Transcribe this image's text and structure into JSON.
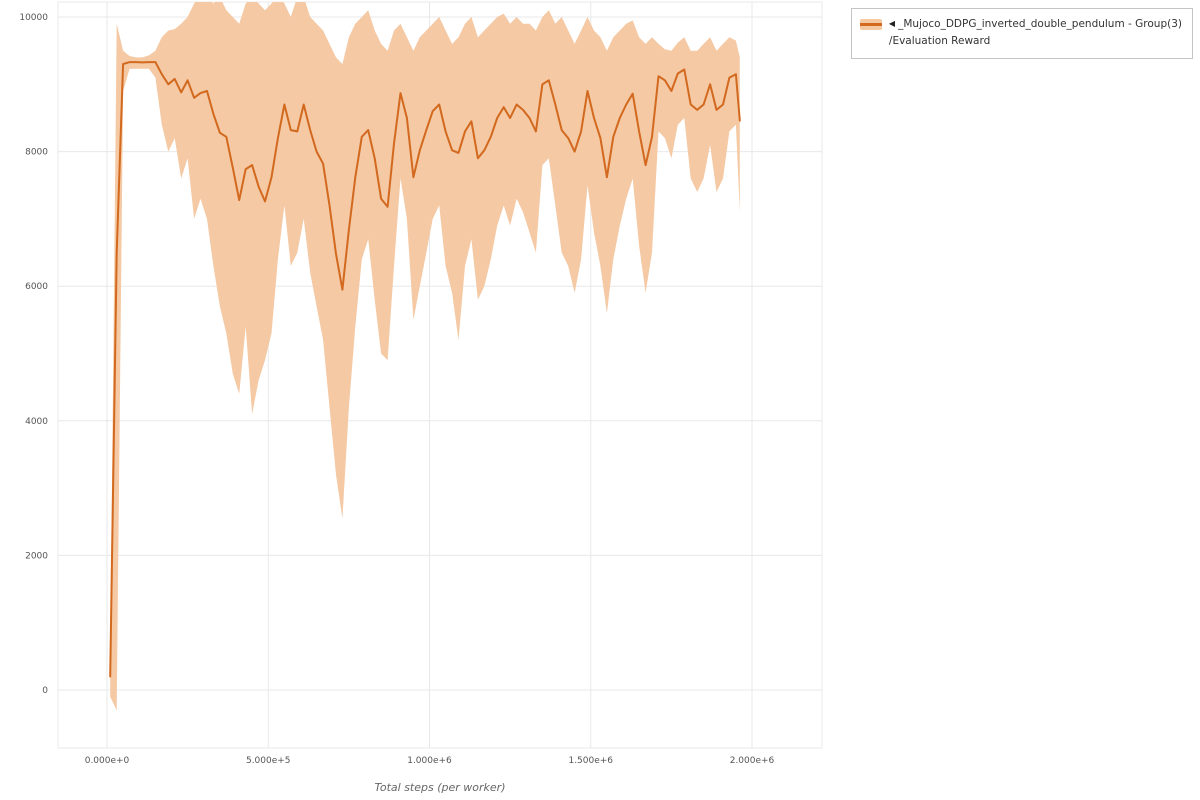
{
  "legend": {
    "toggle_icon": "◀",
    "series_name": "_Mujoco_DDPG_inverted_double_pendulum - Group(3)",
    "metric_name": "/Evaluation Reward"
  },
  "colors": {
    "line": "#d2691e",
    "band": "#f4c9a4",
    "grid": "#e8e8e8",
    "tick_text": "#555555",
    "axis_title_text": "#666666"
  },
  "chart_data": {
    "type": "line",
    "title": "",
    "xlabel": "Total steps (per worker)",
    "ylabel": "",
    "x_ticks": [
      0,
      500000,
      1000000,
      1500000,
      2000000
    ],
    "x_tick_labels": [
      "0.000e+0",
      "5.000e+5",
      "1.000e+6",
      "1.500e+6",
      "2.000e+6"
    ],
    "y_ticks": [
      0,
      2000,
      4000,
      6000,
      8000,
      10000
    ],
    "y_tick_labels": [
      "0",
      "2000",
      "4000",
      "6000",
      "8000",
      "10000"
    ],
    "xlim": [
      -152000,
      2217000
    ],
    "ylim": [
      -862,
      10223
    ],
    "grid": true,
    "legend_position": "top-right-outside",
    "series": [
      {
        "name": "_Mujoco_DDPG_inverted_double_pendulum - Group(3) /Evaluation Reward",
        "x": [
          10000,
          30000,
          50000,
          70000,
          90000,
          110000,
          130000,
          150000,
          170000,
          190000,
          210000,
          230000,
          250000,
          270000,
          290000,
          310000,
          330000,
          350000,
          370000,
          390000,
          410000,
          430000,
          450000,
          470000,
          490000,
          510000,
          530000,
          550000,
          570000,
          590000,
          610000,
          630000,
          650000,
          670000,
          690000,
          710000,
          730000,
          750000,
          770000,
          790000,
          810000,
          830000,
          850000,
          870000,
          890000,
          910000,
          930000,
          950000,
          970000,
          990000,
          1010000,
          1030000,
          1050000,
          1070000,
          1090000,
          1110000,
          1130000,
          1150000,
          1170000,
          1190000,
          1210000,
          1230000,
          1250000,
          1270000,
          1290000,
          1310000,
          1330000,
          1350000,
          1370000,
          1390000,
          1410000,
          1430000,
          1450000,
          1470000,
          1490000,
          1510000,
          1530000,
          1550000,
          1570000,
          1590000,
          1610000,
          1630000,
          1650000,
          1670000,
          1690000,
          1710000,
          1730000,
          1750000,
          1770000,
          1790000,
          1810000,
          1830000,
          1850000,
          1870000,
          1890000,
          1910000,
          1930000,
          1950000,
          1962000
        ],
        "mean": [
          200,
          6500,
          9300,
          9330,
          9330,
          9325,
          9330,
          9330,
          9150,
          9000,
          9080,
          8880,
          9060,
          8800,
          8870,
          8900,
          8560,
          8280,
          8220,
          7760,
          7280,
          7740,
          7800,
          7480,
          7260,
          7620,
          8200,
          8700,
          8320,
          8300,
          8700,
          8320,
          8000,
          7820,
          7200,
          6480,
          5950,
          6840,
          7620,
          8220,
          8320,
          7900,
          7300,
          7180,
          8120,
          8870,
          8500,
          7620,
          8020,
          8320,
          8600,
          8700,
          8300,
          8020,
          7980,
          8300,
          8450,
          7900,
          8020,
          8220,
          8500,
          8660,
          8500,
          8700,
          8620,
          8500,
          8300,
          9000,
          9060,
          8700,
          8320,
          8200,
          8000,
          8300,
          8900,
          8500,
          8200,
          7620,
          8220,
          8500,
          8700,
          8860,
          8300,
          7800,
          8220,
          9120,
          9060,
          8900,
          9160,
          9220,
          8700,
          8620,
          8700,
          9000,
          8620,
          8700,
          9100,
          9150,
          8460
        ],
        "band_high": [
          500,
          9900,
          9500,
          9420,
          9400,
          9400,
          9430,
          9500,
          9700,
          9800,
          9820,
          9900,
          10000,
          10200,
          10300,
          10300,
          10200,
          10300,
          10100,
          10000,
          9900,
          10200,
          10300,
          10200,
          10100,
          10200,
          10300,
          10200,
          10000,
          10300,
          10300,
          10000,
          9900,
          9800,
          9600,
          9400,
          9300,
          9700,
          9900,
          10000,
          10100,
          9800,
          9600,
          9500,
          9800,
          9900,
          9700,
          9500,
          9700,
          9800,
          9900,
          10000,
          9800,
          9600,
          9700,
          9900,
          10000,
          9700,
          9800,
          9900,
          10000,
          10050,
          9900,
          10000,
          9900,
          9900,
          9800,
          10000,
          10100,
          9900,
          10000,
          9800,
          9600,
          9800,
          10000,
          9800,
          9700,
          9500,
          9700,
          9800,
          9900,
          9950,
          9700,
          9600,
          9700,
          9600,
          9520,
          9500,
          9620,
          9700,
          9500,
          9500,
          9600,
          9700,
          9500,
          9600,
          9700,
          9650,
          9400
        ],
        "band_low": [
          -100,
          -300,
          8900,
          9230,
          9230,
          9230,
          9230,
          9100,
          8400,
          8000,
          8200,
          7600,
          7900,
          7000,
          7300,
          7000,
          6300,
          5700,
          5300,
          4700,
          4400,
          5400,
          4100,
          4600,
          4900,
          5300,
          6400,
          7200,
          6300,
          6500,
          7000,
          6200,
          5700,
          5200,
          4200,
          3200,
          2550,
          4200,
          5400,
          6400,
          6700,
          5800,
          5000,
          4900,
          6300,
          7600,
          7000,
          5500,
          6000,
          6500,
          7000,
          7200,
          6300,
          5900,
          5200,
          6300,
          6700,
          5800,
          6000,
          6400,
          6900,
          7200,
          6900,
          7300,
          7100,
          6800,
          6500,
          7800,
          7900,
          7200,
          6500,
          6300,
          5900,
          6400,
          7500,
          6800,
          6300,
          5600,
          6400,
          6900,
          7300,
          7600,
          6600,
          5900,
          6500,
          8300,
          8200,
          7900,
          8400,
          8500,
          7600,
          7400,
          7600,
          8100,
          7400,
          7600,
          8300,
          8400,
          7100
        ]
      }
    ]
  }
}
